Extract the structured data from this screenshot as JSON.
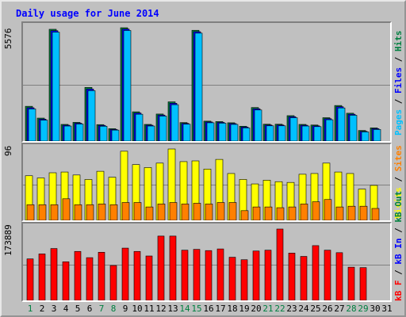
{
  "title": "Daily usage for June 2014",
  "y_max_labels": {
    "hits_panel": "5576",
    "visits_panel": "96",
    "kbytes_panel": "173889"
  },
  "right_labels": {
    "top": [
      {
        "text": "Pages",
        "color": "#00c0ff"
      },
      {
        "text": " / ",
        "color": "#000000"
      },
      {
        "text": "Files",
        "color": "#0000ff"
      },
      {
        "text": " / ",
        "color": "#000000"
      },
      {
        "text": "Hits",
        "color": "#008040"
      }
    ],
    "middle": [
      {
        "text": "Visits",
        "color": "#ffff00"
      },
      {
        "text": " / ",
        "color": "#000000"
      },
      {
        "text": "Sites",
        "color": "#ff8000"
      }
    ],
    "bottom": [
      {
        "text": "kB F",
        "color": "#ff0000"
      },
      {
        "text": " / ",
        "color": "#000000"
      },
      {
        "text": "kB In",
        "color": "#0000ff"
      },
      {
        "text": " / ",
        "color": "#000000"
      },
      {
        "text": "kB Out",
        "color": "#008040"
      }
    ]
  },
  "colors": {
    "hits": "#008040",
    "files": "#0000ff",
    "pages": "#00c0ff",
    "visits": "#ffff00",
    "sites": "#ff8000",
    "kbf": "#ff0000",
    "weekday": "#000000",
    "weekend": "#008040"
  },
  "chart_data": [
    {
      "type": "bar",
      "x": [
        1,
        2,
        3,
        4,
        5,
        6,
        7,
        8,
        9,
        10,
        11,
        12,
        13,
        14,
        15,
        16,
        17,
        18,
        19,
        20,
        21,
        22,
        23,
        24,
        25,
        26,
        27,
        28,
        29,
        30
      ],
      "ylim": [
        0,
        5576
      ],
      "series": [
        {
          "name": "Hits",
          "values": [
            1710,
            1130,
            5500,
            820,
            920,
            2640,
            810,
            610,
            5576,
            1440,
            820,
            1330,
            1930,
            910,
            5450,
            980,
            960,
            900,
            730,
            1650,
            830,
            830,
            1250,
            820,
            790,
            1150,
            1750,
            1370,
            520,
            650
          ]
        },
        {
          "name": "Files",
          "values": [
            1640,
            1080,
            5430,
            780,
            880,
            2560,
            770,
            570,
            5510,
            1380,
            780,
            1280,
            1860,
            870,
            5380,
            940,
            920,
            860,
            690,
            1590,
            790,
            790,
            1200,
            780,
            750,
            1100,
            1690,
            1320,
            480,
            610
          ]
        },
        {
          "name": "Pages",
          "values": [
            1580,
            1030,
            5360,
            740,
            840,
            2480,
            730,
            540,
            5440,
            1320,
            740,
            1230,
            1790,
            830,
            5310,
            900,
            880,
            820,
            650,
            1530,
            750,
            750,
            1150,
            740,
            710,
            1050,
            1630,
            1270,
            450,
            570
          ]
        }
      ]
    },
    {
      "type": "bar",
      "x": [
        1,
        2,
        3,
        4,
        5,
        6,
        7,
        8,
        9,
        10,
        11,
        12,
        13,
        14,
        15,
        16,
        17,
        18,
        19,
        20,
        21,
        22,
        23,
        24,
        25,
        26,
        27,
        28,
        29,
        30
      ],
      "ylim": [
        0,
        96
      ],
      "series": [
        {
          "name": "Visits",
          "values": [
            60,
            57,
            64,
            65,
            61,
            55,
            66,
            58,
            93,
            75,
            71,
            77,
            96,
            79,
            80,
            69,
            82,
            63,
            55,
            49,
            54,
            52,
            51,
            62,
            63,
            77,
            65,
            63,
            42,
            47
          ]
        },
        {
          "name": "Sites",
          "values": [
            21,
            21,
            21,
            29,
            21,
            21,
            22,
            21,
            24,
            24,
            18,
            22,
            24,
            22,
            23,
            22,
            24,
            24,
            13,
            18,
            18,
            17,
            18,
            22,
            25,
            28,
            18,
            19,
            19,
            16
          ]
        }
      ]
    },
    {
      "type": "bar",
      "x": [
        1,
        2,
        3,
        4,
        5,
        6,
        7,
        8,
        9,
        10,
        11,
        12,
        13,
        14,
        15,
        16,
        17,
        18,
        19,
        20,
        21,
        22,
        23,
        24,
        25,
        26,
        27,
        28,
        29,
        30
      ],
      "ylim": [
        0,
        173889
      ],
      "series": [
        {
          "name": "kB F",
          "values": [
            100000,
            112000,
            125000,
            93000,
            118000,
            103000,
            116000,
            84000,
            126000,
            118000,
            107000,
            155000,
            155000,
            121000,
            123000,
            120000,
            124000,
            104000,
            98000,
            119000,
            121000,
            172000,
            114000,
            106000,
            132000,
            121000,
            115000,
            80000,
            79000,
            0
          ]
        }
      ]
    }
  ],
  "x_labels": [
    {
      "text": "1",
      "weekend": true
    },
    {
      "text": "2",
      "weekend": false
    },
    {
      "text": "3",
      "weekend": false
    },
    {
      "text": "4",
      "weekend": false
    },
    {
      "text": "5",
      "weekend": false
    },
    {
      "text": "6",
      "weekend": false
    },
    {
      "text": "7",
      "weekend": true
    },
    {
      "text": "8",
      "weekend": true
    },
    {
      "text": "9",
      "weekend": false
    },
    {
      "text": "10",
      "weekend": false
    },
    {
      "text": "11",
      "weekend": false
    },
    {
      "text": "12",
      "weekend": false
    },
    {
      "text": "13",
      "weekend": false
    },
    {
      "text": "14",
      "weekend": true
    },
    {
      "text": "15",
      "weekend": true
    },
    {
      "text": "16",
      "weekend": false
    },
    {
      "text": "17",
      "weekend": false
    },
    {
      "text": "18",
      "weekend": false
    },
    {
      "text": "19",
      "weekend": false
    },
    {
      "text": "20",
      "weekend": false
    },
    {
      "text": "21",
      "weekend": true
    },
    {
      "text": "22",
      "weekend": true
    },
    {
      "text": "23",
      "weekend": false
    },
    {
      "text": "24",
      "weekend": false
    },
    {
      "text": "25",
      "weekend": false
    },
    {
      "text": "26",
      "weekend": false
    },
    {
      "text": "27",
      "weekend": false
    },
    {
      "text": "28",
      "weekend": true
    },
    {
      "text": "29",
      "weekend": true
    },
    {
      "text": "30",
      "weekend": false
    },
    {
      "text": "31",
      "weekend": false
    }
  ]
}
